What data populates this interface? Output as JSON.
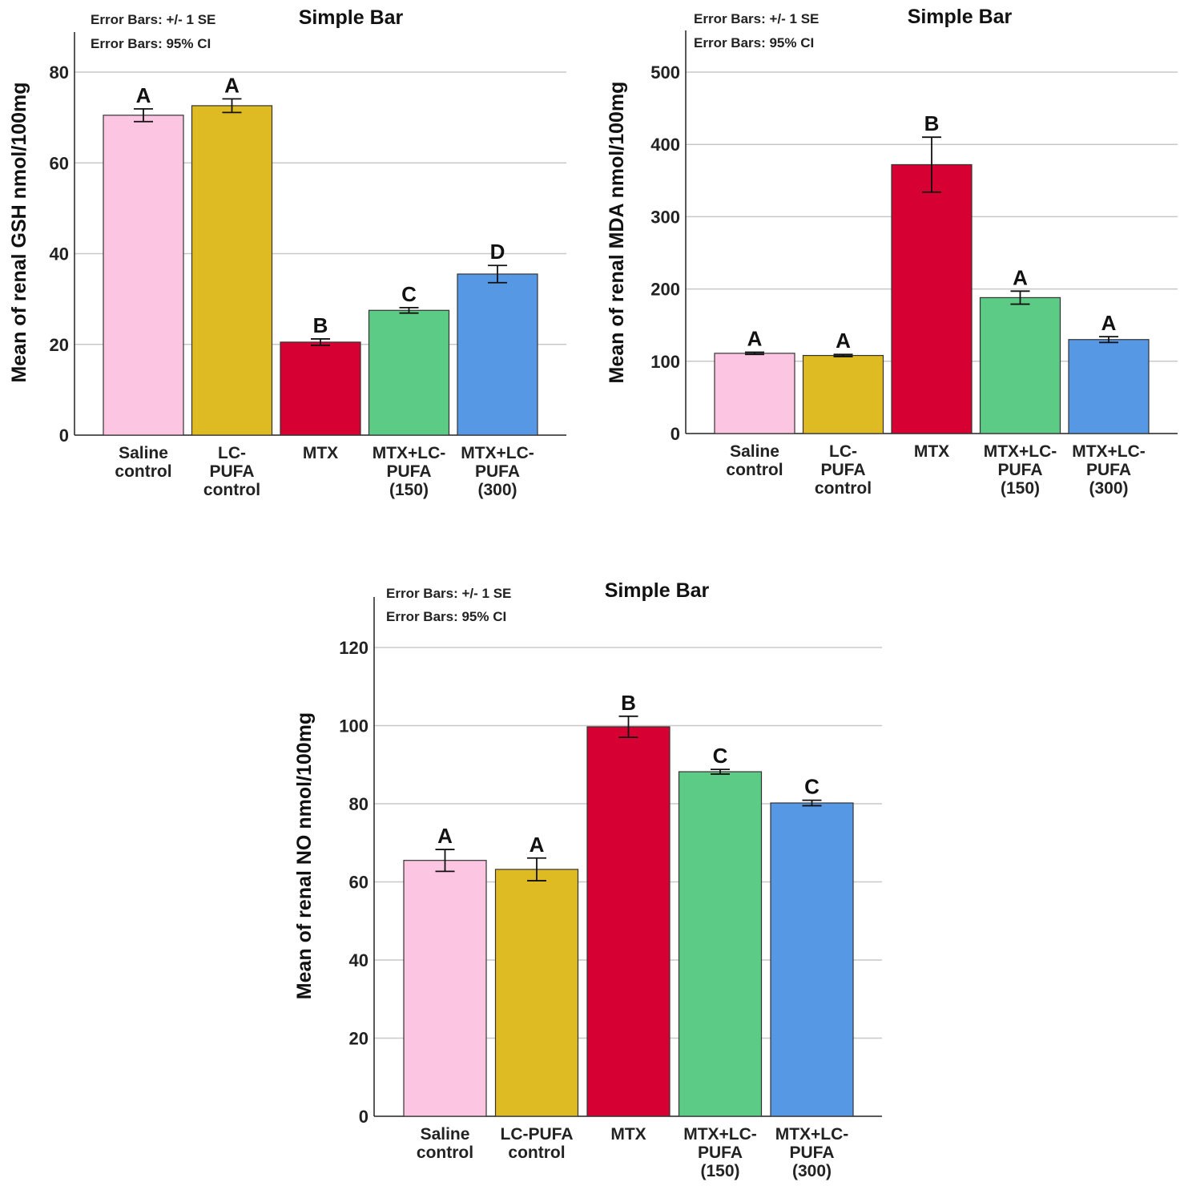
{
  "chart_data": [
    {
      "type": "bar",
      "title": "Simple Bar",
      "notes": [
        "Error Bars: +/- 1 SE",
        "Error Bars: 95% CI"
      ],
      "ylabel": "Mean of renal GSH nmol/100mg",
      "xlabel": "",
      "ylim": [
        0,
        80
      ],
      "yticks": [
        0,
        20,
        40,
        60,
        80
      ],
      "grid": true,
      "categories": [
        [
          "Saline",
          "control"
        ],
        [
          "LC-",
          "PUFA",
          "control"
        ],
        [
          "MTX"
        ],
        [
          "MTX+LC-",
          "PUFA",
          "(150)"
        ],
        [
          "MTX+LC-",
          "PUFA",
          "(300)"
        ]
      ],
      "values": [
        70.5,
        72.6,
        20.5,
        27.5,
        35.5
      ],
      "errors": [
        1.4,
        1.5,
        0.7,
        0.6,
        1.9
      ],
      "letters": [
        "A",
        "A",
        "B",
        "C",
        "D"
      ],
      "colors": [
        "#fcc5e2",
        "#dfbb23",
        "#d60032",
        "#5ccb86",
        "#5698e4"
      ]
    },
    {
      "type": "bar",
      "title": "Simple Bar",
      "notes": [
        "Error Bars: +/- 1 SE",
        "Error Bars: 95% CI"
      ],
      "ylabel": "Mean of renal MDA nmol/100mg",
      "xlabel": "",
      "ylim": [
        0,
        500
      ],
      "yticks": [
        0,
        100,
        200,
        300,
        400,
        500
      ],
      "grid": true,
      "categories": [
        [
          "Saline",
          "control"
        ],
        [
          "LC-",
          "PUFA",
          "control"
        ],
        [
          "MTX"
        ],
        [
          "MTX+LC-",
          "PUFA",
          "(150)"
        ],
        [
          "MTX+LC-",
          "PUFA",
          "(300)"
        ]
      ],
      "values": [
        111,
        108,
        372,
        188,
        130
      ],
      "errors": [
        1.5,
        1.5,
        38,
        9,
        4
      ],
      "letters": [
        "A",
        "A",
        "B",
        "A",
        "A"
      ],
      "colors": [
        "#fcc5e2",
        "#dfbb23",
        "#d60032",
        "#5ccb86",
        "#5698e4"
      ]
    },
    {
      "type": "bar",
      "title": "Simple Bar",
      "notes": [
        "Error Bars: +/- 1 SE",
        "Error Bars: 95% CI"
      ],
      "ylabel": "Mean of renal NO nmol/100mg",
      "xlabel": "",
      "ylim": [
        0,
        120
      ],
      "yticks": [
        0,
        20,
        40,
        60,
        80,
        100,
        120
      ],
      "grid": true,
      "categories": [
        [
          "Saline",
          "control"
        ],
        [
          "LC-PUFA",
          "control"
        ],
        [
          "MTX"
        ],
        [
          "MTX+LC-",
          "PUFA",
          "(150)"
        ],
        [
          "MTX+LC-",
          "PUFA",
          "(300)"
        ]
      ],
      "values": [
        65.5,
        63.2,
        99.7,
        88.2,
        80.2
      ],
      "errors": [
        2.8,
        2.9,
        2.7,
        0.6,
        0.7
      ],
      "letters": [
        "A",
        "A",
        "B",
        "C",
        "C"
      ],
      "colors": [
        "#fcc5e2",
        "#dfbb23",
        "#d60032",
        "#5ccb86",
        "#5698e4"
      ]
    }
  ]
}
